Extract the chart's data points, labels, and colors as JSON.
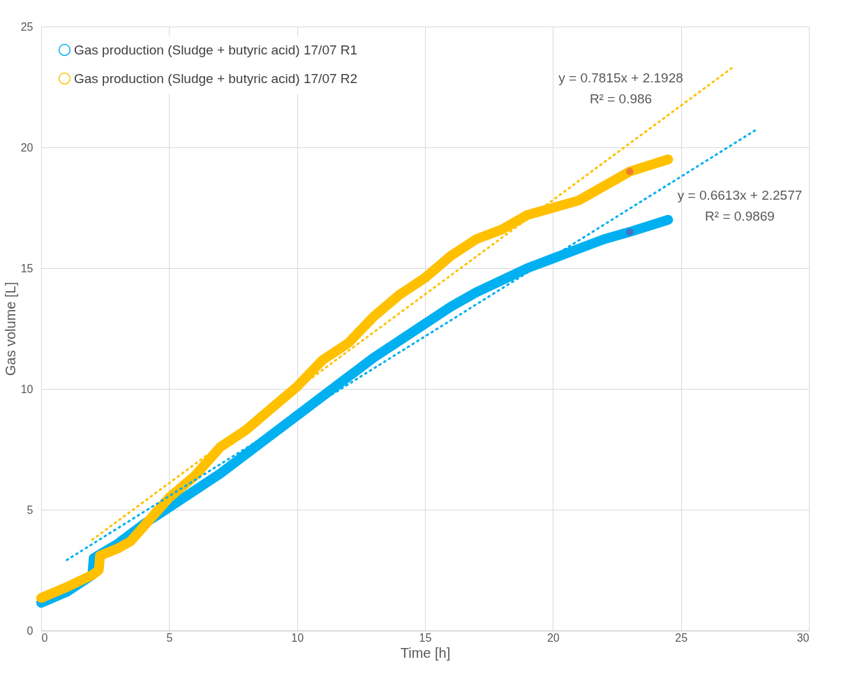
{
  "chart_data": {
    "type": "line",
    "xlabel": "Time [h]",
    "ylabel": "Gas volume [L]",
    "xlim": [
      0,
      30
    ],
    "ylim": [
      0,
      25
    ],
    "xticks": [
      0,
      5,
      10,
      15,
      20,
      25,
      30
    ],
    "yticks": [
      0,
      5,
      10,
      15,
      20,
      25
    ],
    "grid": true,
    "legend": "top left",
    "series": [
      {
        "name": "Gas production (Sludge + butyric acid) 17/07 R1",
        "line_style": "solid",
        "color": "#00b0f0",
        "x": [
          0,
          1,
          2,
          2.05,
          3,
          4,
          5,
          6,
          7,
          8,
          9,
          10,
          11,
          12,
          13,
          14,
          15,
          16,
          17,
          18,
          19,
          20,
          21,
          22,
          23,
          24.5
        ],
        "values": [
          1.15,
          1.6,
          2.3,
          3.0,
          3.6,
          4.4,
          5.1,
          5.8,
          6.5,
          7.3,
          8.1,
          8.9,
          9.7,
          10.5,
          11.3,
          12.0,
          12.7,
          13.4,
          14.0,
          14.5,
          15.0,
          15.4,
          15.8,
          16.2,
          16.5,
          17.0
        ]
      },
      {
        "name": "Gas production (Sludge + butyric acid) 17/07 R2",
        "line_style": "solid",
        "color": "#ffc000",
        "x": [
          0,
          1,
          2,
          2.25,
          2.3,
          3,
          3.5,
          4,
          5,
          6,
          7,
          8,
          9,
          10,
          11,
          12,
          13,
          14,
          15,
          16,
          17,
          18,
          19,
          20,
          21,
          22,
          23,
          24.5
        ],
        "values": [
          1.35,
          1.8,
          2.3,
          2.5,
          3.1,
          3.4,
          3.7,
          4.3,
          5.5,
          6.4,
          7.6,
          8.3,
          9.2,
          10.1,
          11.2,
          11.9,
          13.0,
          13.9,
          14.6,
          15.5,
          16.2,
          16.6,
          17.2,
          17.5,
          17.8,
          18.4,
          19.0,
          19.5
        ]
      },
      {
        "line_style": "dotted",
        "color": "#00b0f0",
        "x": [
          1,
          28
        ],
        "values": [
          2.92,
          20.77
        ]
      },
      {
        "line_style": "dotted",
        "color": "#ffc000",
        "x": [
          2,
          27
        ],
        "values": [
          3.76,
          23.29
        ]
      },
      {
        "type": "scatter",
        "marker": "circle",
        "color": "#ed7d31",
        "x": [
          23
        ],
        "values": [
          19.0
        ]
      },
      {
        "type": "scatter",
        "marker": "circle",
        "color": "#4472c4",
        "x": [
          23
        ],
        "values": [
          16.5
        ]
      }
    ],
    "annotations": [
      "y = 0.7815x + 2.1928",
      "R² = 0.986",
      "y = 0.6613x + 2.2577",
      "R² = 0.9869"
    ]
  }
}
